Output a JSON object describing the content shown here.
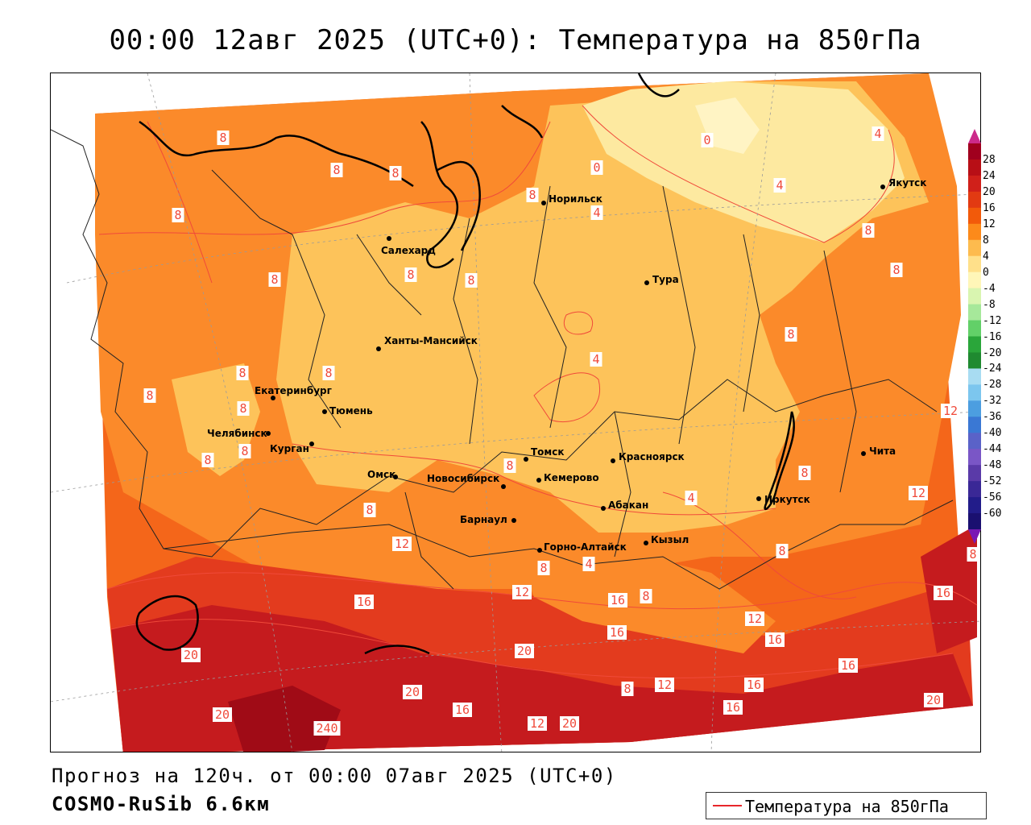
{
  "title": "00:00 12авг 2025 (UTC+0): Температура на 850гПа",
  "footer": {
    "forecast": "Прогноз на 120ч. от 00:00 07авг 2025 (UTC+0)",
    "model": "COSMO-RuSib 6.6км"
  },
  "legend": {
    "label": "Температура на 850гПа",
    "line_color": "#e8262b"
  },
  "colorbar": {
    "ticks": [
      "28",
      "24",
      "20",
      "16",
      "12",
      "8",
      "4",
      "0",
      "-4",
      "-8",
      "-12",
      "-16",
      "-20",
      "-24",
      "-28",
      "-32",
      "-36",
      "-40",
      "-44",
      "-48",
      "-52",
      "-56",
      "-60"
    ],
    "colors": [
      "#a0001e",
      "#b80f16",
      "#d0201a",
      "#e23a12",
      "#f25a0a",
      "#fc8a1a",
      "#fdbb4e",
      "#ffe08a",
      "#fff6b8",
      "#d9f5b0",
      "#a6e89a",
      "#62d068",
      "#2aa63a",
      "#1f8a30",
      "#a8dcf2",
      "#7cc6ee",
      "#4c9ee0",
      "#3a78d4",
      "#5a62c8",
      "#7a56c6",
      "#5a3aa8",
      "#3a2896",
      "#221c8a",
      "#1a1070"
    ],
    "top_color": "#cc2a8a",
    "bottom_color": "#7a18b4"
  },
  "map_colors": {
    "t_0_4": "#fde9a0",
    "t_4_8": "#fdc35a",
    "t_8_12": "#fb8a2a",
    "t_12_16": "#f4661a",
    "t_16_20": "#e33b1e",
    "t_20_24": "#c51b1e",
    "t_24_28": "#a00b16",
    "isoline": "#f04a3a",
    "border": "#222222"
  },
  "cities": [
    {
      "name": "Якутск"
    },
    {
      "name": "Норильск"
    },
    {
      "name": "Салехард"
    },
    {
      "name": "Тура"
    },
    {
      "name": "Ханты-Мансийск"
    },
    {
      "name": "Екатеринбург"
    },
    {
      "name": "Тюмень"
    },
    {
      "name": "Челябинск"
    },
    {
      "name": "Курган"
    },
    {
      "name": "Омск"
    },
    {
      "name": "Томск"
    },
    {
      "name": "Красноярск"
    },
    {
      "name": "Новосибирск"
    },
    {
      "name": "Кемерово"
    },
    {
      "name": "Барнаул"
    },
    {
      "name": "Абакан"
    },
    {
      "name": "Иркутск"
    },
    {
      "name": "Чита"
    },
    {
      "name": "Кызыл"
    },
    {
      "name": "Горно-Алтайск"
    }
  ],
  "isotherm_labels": [
    "8",
    "8",
    "8",
    "8",
    "8",
    "0",
    "0",
    "4",
    "4",
    "4",
    "8",
    "8",
    "8",
    "8",
    "8",
    "8",
    "8",
    "8",
    "4",
    "8",
    "8",
    "8",
    "8",
    "8",
    "8",
    "8",
    "8",
    "12",
    "12",
    "12",
    "8",
    "4",
    "4",
    "8",
    "8",
    "16",
    "16",
    "12",
    "12",
    "16",
    "16",
    "20",
    "20",
    "16",
    "20",
    "8",
    "12",
    "16",
    "16",
    "12",
    "16",
    "20",
    "20",
    "16",
    "20",
    "240"
  ]
}
